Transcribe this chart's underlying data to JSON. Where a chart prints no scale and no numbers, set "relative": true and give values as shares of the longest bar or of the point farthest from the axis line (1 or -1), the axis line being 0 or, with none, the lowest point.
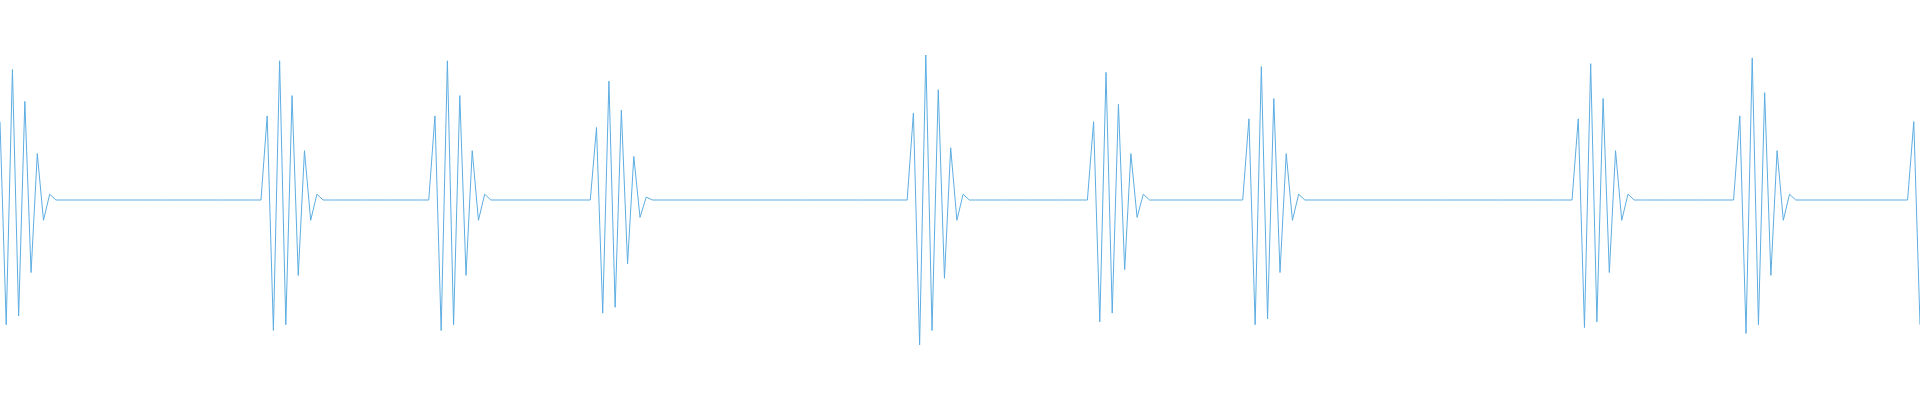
{
  "chart_data": {
    "type": "line",
    "relative": true,
    "color": "#5dade2",
    "categories": [
      null,
      null,
      null,
      null,
      null,
      null,
      null,
      null,
      null,
      null,
      null,
      null,
      null,
      null,
      null,
      null,
      null,
      null,
      null,
      null,
      null,
      null,
      null,
      null,
      null,
      null,
      null,
      null,
      null,
      null,
      null,
      null,
      null,
      null,
      null,
      null,
      null,
      null,
      null,
      null,
      null,
      null,
      null,
      null,
      null,
      null,
      null,
      null,
      null,
      null,
      null,
      null,
      null,
      null,
      null,
      null,
      null,
      null,
      null,
      null,
      null,
      null,
      null,
      null,
      null,
      null,
      null,
      null,
      null,
      null,
      null,
      null,
      null,
      null,
      null,
      null,
      null,
      null,
      null,
      null,
      null,
      null,
      null,
      null,
      null,
      null,
      null,
      null,
      null,
      null,
      null,
      null,
      null,
      null,
      null,
      null,
      null,
      null,
      null,
      null,
      null,
      null,
      null,
      null,
      null,
      null,
      null,
      null,
      null,
      null,
      null,
      null,
      null,
      null,
      null,
      null,
      null,
      null,
      null,
      null,
      null,
      null,
      null,
      null,
      null,
      null,
      null,
      null,
      null,
      null,
      null,
      null,
      null,
      null,
      null,
      null,
      null,
      null,
      null,
      null,
      null,
      null,
      null,
      null,
      null,
      null,
      null,
      null,
      null,
      null,
      null,
      null,
      null,
      null,
      null,
      null,
      null,
      null,
      null,
      null,
      null,
      null,
      null,
      null,
      null,
      null,
      null,
      null,
      null,
      null,
      null,
      null,
      null,
      null,
      null,
      null,
      null,
      null,
      null,
      null,
      null,
      null,
      null,
      null,
      null,
      null,
      null,
      null,
      null,
      null,
      null,
      null,
      null,
      null,
      null,
      null,
      null,
      null,
      null,
      null,
      null,
      null,
      null,
      null,
      null,
      null,
      null,
      null,
      null,
      null,
      null,
      null,
      null,
      null,
      null,
      null,
      null,
      null,
      null,
      null,
      null,
      null,
      null,
      null,
      null,
      null,
      null,
      null,
      null,
      null,
      null,
      null,
      null,
      null,
      null,
      null,
      null,
      null,
      null,
      null,
      null,
      null,
      null,
      null,
      null,
      null,
      null,
      null,
      null,
      null,
      null,
      null,
      null,
      null,
      null,
      null,
      null,
      null,
      null,
      null,
      null,
      null,
      null,
      null,
      null,
      null,
      null,
      null,
      null,
      null,
      null,
      null,
      null,
      null,
      null,
      null,
      null,
      null,
      null,
      null,
      null,
      null,
      null,
      null,
      null,
      null,
      null,
      null,
      null,
      null,
      null,
      null,
      null,
      null,
      null,
      null,
      null,
      null,
      null,
      null,
      null,
      null,
      null,
      null,
      null,
      null,
      null,
      null,
      null,
      null
    ],
    "values": [
      0.77,
      0.07,
      0.95,
      0.1,
      0.84,
      0.25,
      0.66,
      0.43,
      0.52,
      0.5,
      0.5,
      0.5,
      0.5,
      0.5,
      0.5,
      0.5,
      0.5,
      0.5,
      0.5,
      0.5,
      0.5,
      0.5,
      0.5,
      0.5,
      0.5,
      0.5,
      0.5,
      0.5,
      0.5,
      0.5,
      0.5,
      0.5,
      0.5,
      0.5,
      0.5,
      0.5,
      0.5,
      0.5,
      0.5,
      0.5,
      0.5,
      0.5,
      0.5,
      0.79,
      0.05,
      0.98,
      0.07,
      0.86,
      0.24,
      0.67,
      0.43,
      0.52,
      0.5,
      0.5,
      0.5,
      0.5,
      0.5,
      0.5,
      0.5,
      0.5,
      0.5,
      0.5,
      0.5,
      0.5,
      0.5,
      0.5,
      0.5,
      0.5,
      0.5,
      0.5,
      0.79,
      0.05,
      0.98,
      0.07,
      0.86,
      0.24,
      0.67,
      0.43,
      0.52,
      0.5,
      0.5,
      0.5,
      0.5,
      0.5,
      0.5,
      0.5,
      0.5,
      0.5,
      0.5,
      0.5,
      0.5,
      0.5,
      0.5,
      0.5,
      0.5,
      0.5,
      0.75,
      0.11,
      0.91,
      0.13,
      0.81,
      0.28,
      0.65,
      0.44,
      0.51,
      0.5,
      0.5,
      0.5,
      0.5,
      0.5,
      0.5,
      0.5,
      0.5,
      0.5,
      0.5,
      0.5,
      0.5,
      0.5,
      0.5,
      0.5,
      0.5,
      0.5,
      0.5,
      0.5,
      0.5,
      0.5,
      0.5,
      0.5,
      0.5,
      0.5,
      0.5,
      0.5,
      0.5,
      0.5,
      0.5,
      0.5,
      0.5,
      0.5,
      0.5,
      0.5,
      0.5,
      0.5,
      0.5,
      0.5,
      0.5,
      0.5,
      0.5,
      0.8,
      0,
      1,
      0.05,
      0.88,
      0.23,
      0.68,
      0.43,
      0.52,
      0.5,
      0.5,
      0.5,
      0.5,
      0.5,
      0.5,
      0.5,
      0.5,
      0.5,
      0.5,
      0.5,
      0.5,
      0.5,
      0.5,
      0.5,
      0.5,
      0.5,
      0.5,
      0.5,
      0.5,
      0.77,
      0.08,
      0.94,
      0.11,
      0.83,
      0.26,
      0.66,
      0.44,
      0.52,
      0.5,
      0.5,
      0.5,
      0.5,
      0.5,
      0.5,
      0.5,
      0.5,
      0.5,
      0.5,
      0.5,
      0.5,
      0.5,
      0.5,
      0.5,
      0.5,
      0.78,
      0.07,
      0.96,
      0.09,
      0.85,
      0.25,
      0.66,
      0.43,
      0.52,
      0.5,
      0.5,
      0.5,
      0.5,
      0.5,
      0.5,
      0.5,
      0.5,
      0.5,
      0.5,
      0.5,
      0.5,
      0.5,
      0.5,
      0.5,
      0.5,
      0.5,
      0.5,
      0.5,
      0.5,
      0.5,
      0.5,
      0.5,
      0.5,
      0.5,
      0.5,
      0.5,
      0.5,
      0.5,
      0.5,
      0.5,
      0.5,
      0.5,
      0.5,
      0.5,
      0.5,
      0.5,
      0.5,
      0.5,
      0.5,
      0.5,
      0.5,
      0.5,
      0.5,
      0.78,
      0.06,
      0.97,
      0.08,
      0.85,
      0.25,
      0.67,
      0.43,
      0.52,
      0.5,
      0.5,
      0.5,
      0.5,
      0.5,
      0.5,
      0.5,
      0.5,
      0.5,
      0.5,
      0.5,
      0.5,
      0.5,
      0.5,
      0.5,
      0.5,
      0.5,
      0.79,
      0.04,
      0.99,
      0.07,
      0.87,
      0.24,
      0.67,
      0.43,
      0.52,
      0.5,
      0.5,
      0.5,
      0.5,
      0.5,
      0.5,
      0.5,
      0.5,
      0.5,
      0.5,
      0.5,
      0.5,
      0.5,
      0.5,
      0.5,
      0.5,
      0.5,
      0.5,
      0.5,
      0.77,
      0.07
    ]
  }
}
